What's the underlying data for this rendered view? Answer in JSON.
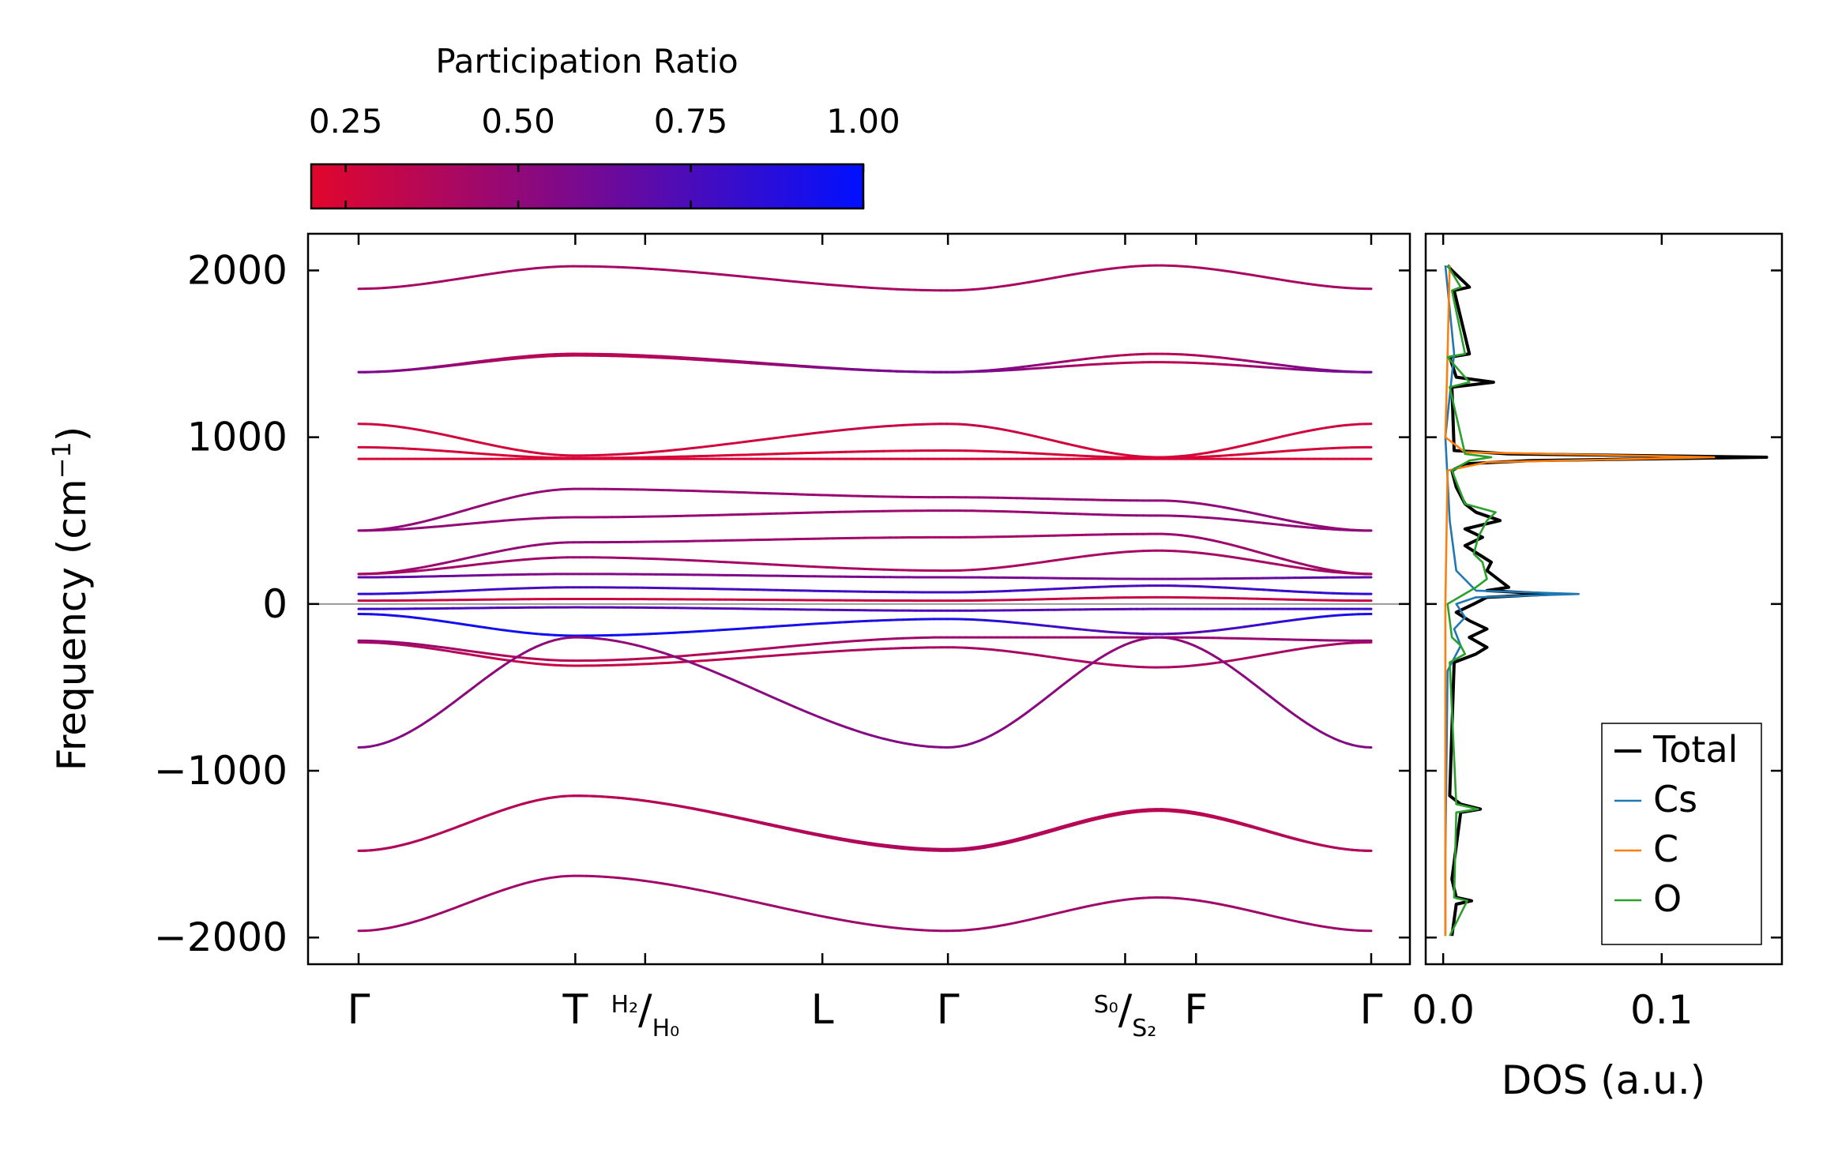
{
  "chart_data": [
    {
      "type": "line",
      "title": "",
      "ylabel": "Frequency (cm",
      "ylabel_sup": "−1",
      "ylabel_close": ")",
      "ylim": [
        -2160,
        2220
      ],
      "yticks": [
        -2000,
        -1000,
        0,
        1000,
        2000
      ],
      "ytick_labels": [
        "−2000",
        "−1000",
        "0",
        "1000",
        "2000"
      ],
      "x_path": [
        {
          "pos": 0.0,
          "label": "Γ"
        },
        {
          "pos": 0.214,
          "label": "T"
        },
        {
          "pos": 0.283,
          "label_sup": "H₂",
          "label_sub": "H₀",
          "slash": "/"
        },
        {
          "pos": 0.458,
          "label": "L"
        },
        {
          "pos": 0.582,
          "label": "Γ"
        },
        {
          "pos": 0.757,
          "label_sup": "S₀",
          "label_sub": "S₂",
          "slash": "/"
        },
        {
          "pos": 0.827,
          "label": "F"
        },
        {
          "pos": 1.0,
          "label": "Γ"
        }
      ],
      "zero_line": 0,
      "colorbar": {
        "label": "Participation Ratio",
        "range": [
          0.2,
          1.0
        ],
        "ticks": [
          0.25,
          0.5,
          0.75,
          1.0
        ],
        "tick_labels": [
          "0.25",
          "0.50",
          "0.75",
          "1.00"
        ],
        "color_low": "#e2062c",
        "color_mid": "#6b0a9c",
        "color_high": "#0010ff"
      },
      "bands": [
        {
          "y": [
            1890,
            2025,
            1880,
            2030,
            1890
          ],
          "pr": [
            0.42,
            0.42,
            0.42,
            0.4,
            0.42
          ]
        },
        {
          "y": [
            1390,
            1500,
            1390,
            1500,
            1390
          ],
          "pr": [
            0.58,
            0.36,
            0.6,
            0.36,
            0.6
          ]
        },
        {
          "y": [
            1390,
            1490,
            1390,
            1450,
            1390
          ],
          "pr": [
            0.58,
            0.34,
            0.6,
            0.34,
            0.6
          ]
        },
        {
          "y": [
            1080,
            890,
            1080,
            880,
            1080
          ],
          "pr": [
            0.28,
            0.25,
            0.3,
            0.25,
            0.28
          ]
        },
        {
          "y": [
            940,
            875,
            920,
            875,
            940
          ],
          "pr": [
            0.26,
            0.24,
            0.26,
            0.24,
            0.26
          ]
        },
        {
          "y": [
            870,
            870,
            870,
            870,
            870
          ],
          "pr": [
            0.24,
            0.24,
            0.24,
            0.24,
            0.24
          ]
        },
        {
          "y": [
            440,
            690,
            640,
            620,
            440
          ],
          "pr": [
            0.5,
            0.48,
            0.46,
            0.5,
            0.5
          ]
        },
        {
          "y": [
            440,
            520,
            560,
            530,
            440
          ],
          "pr": [
            0.5,
            0.48,
            0.46,
            0.5,
            0.5
          ]
        },
        {
          "y": [
            180,
            370,
            400,
            420,
            180
          ],
          "pr": [
            0.45,
            0.5,
            0.42,
            0.45,
            0.45
          ]
        },
        {
          "y": [
            180,
            280,
            200,
            320,
            180
          ],
          "pr": [
            0.42,
            0.45,
            0.4,
            0.42,
            0.42
          ]
        },
        {
          "y": [
            160,
            180,
            160,
            150,
            160
          ],
          "pr": [
            0.7,
            0.55,
            0.6,
            0.6,
            0.7
          ]
        },
        {
          "y": [
            60,
            100,
            70,
            110,
            60
          ],
          "pr": [
            0.85,
            0.75,
            0.8,
            0.75,
            0.85
          ]
        },
        {
          "y": [
            20,
            30,
            20,
            40,
            20
          ],
          "pr": [
            0.3,
            0.28,
            0.3,
            0.3,
            0.3
          ]
        },
        {
          "y": [
            -30,
            -20,
            -40,
            -30,
            -30
          ],
          "pr": [
            0.8,
            0.7,
            0.75,
            0.7,
            0.8
          ]
        },
        {
          "y": [
            -60,
            -190,
            -90,
            -180,
            -60
          ],
          "pr": [
            0.92,
            0.95,
            0.9,
            0.7,
            0.92
          ]
        },
        {
          "y": [
            -220,
            -340,
            -200,
            -200,
            -220
          ],
          "pr": [
            0.5,
            0.35,
            0.45,
            0.45,
            0.5
          ]
        },
        {
          "y": [
            -230,
            -370,
            -260,
            -380,
            -230
          ],
          "pr": [
            0.42,
            0.3,
            0.42,
            0.4,
            0.42
          ]
        },
        {
          "y": [
            -860,
            -200,
            -860,
            -200,
            -860
          ],
          "pr": [
            0.55,
            0.5,
            0.55,
            0.5,
            0.55
          ]
        },
        {
          "y": [
            -1480,
            -1150,
            -1470,
            -1230,
            -1480
          ],
          "pr": [
            0.4,
            0.38,
            0.4,
            0.36,
            0.4
          ]
        },
        {
          "y": [
            -1480,
            -1150,
            -1480,
            -1240,
            -1480
          ],
          "pr": [
            0.38,
            0.36,
            0.38,
            0.34,
            0.38
          ]
        },
        {
          "y": [
            -1960,
            -1630,
            -1960,
            -1760,
            -1960
          ],
          "pr": [
            0.45,
            0.44,
            0.45,
            0.44,
            0.45
          ]
        }
      ]
    },
    {
      "type": "line",
      "xlabel": "DOS (a.u.)",
      "xlim": [
        -0.008,
        0.155
      ],
      "xticks": [
        0.0,
        0.1
      ],
      "xtick_labels": [
        "0.0",
        "0.1"
      ],
      "ylim": [
        -2160,
        2220
      ],
      "legend": {
        "position": "bottom-right"
      },
      "series": [
        {
          "name": "Total",
          "color": "#000000",
          "freq": [
            -1990,
            -1800,
            -1780,
            -1760,
            -1650,
            -1250,
            -1230,
            -1200,
            -1150,
            -350,
            -300,
            -260,
            -200,
            -150,
            -100,
            -50,
            0,
            40,
            60,
            80,
            100,
            150,
            200,
            250,
            300,
            350,
            400,
            450,
            500,
            550,
            600,
            700,
            800,
            840,
            860,
            880,
            900,
            920,
            1300,
            1330,
            1360,
            1480,
            1500,
            1880,
            1900,
            2000,
            2030
          ],
          "dos": [
            0.004,
            0.006,
            0.013,
            0.006,
            0.004,
            0.008,
            0.017,
            0.008,
            0.003,
            0.005,
            0.015,
            0.02,
            0.012,
            0.02,
            0.012,
            0.006,
            0.014,
            0.02,
            0.05,
            0.02,
            0.03,
            0.025,
            0.02,
            0.022,
            0.016,
            0.01,
            0.018,
            0.01,
            0.026,
            0.015,
            0.01,
            0.006,
            0.004,
            0.01,
            0.04,
            0.148,
            0.03,
            0.005,
            0.004,
            0.023,
            0.006,
            0.003,
            0.012,
            0.005,
            0.012,
            0.004,
            0.002
          ]
        },
        {
          "name": "Cs",
          "color": "#1f77b4",
          "freq": [
            -1990,
            -1500,
            -400,
            -250,
            -150,
            -80,
            0,
            40,
            60,
            80,
            200,
            500,
            1000,
            1500,
            2030
          ],
          "dos": [
            0.001,
            0.001,
            0.002,
            0.008,
            0.005,
            0.01,
            0.006,
            0.015,
            0.062,
            0.015,
            0.006,
            0.003,
            0.001,
            0.005,
            0.001
          ]
        },
        {
          "name": "C",
          "color": "#ff7f0e",
          "freq": [
            -1990,
            -1000,
            0,
            800,
            850,
            880,
            910,
            1000,
            1500,
            2030
          ],
          "dos": [
            0.001,
            0.001,
            0.001,
            0.002,
            0.02,
            0.124,
            0.01,
            0.001,
            0.002,
            0.003
          ]
        },
        {
          "name": "O",
          "color": "#2ca02c",
          "freq": [
            -1990,
            -1780,
            -1760,
            -1250,
            -1230,
            -1200,
            -350,
            -300,
            -250,
            -200,
            0,
            100,
            150,
            250,
            300,
            400,
            500,
            550,
            600,
            800,
            860,
            880,
            900,
            1300,
            1330,
            1480,
            1500,
            1880,
            1900,
            2030
          ],
          "dos": [
            0.003,
            0.011,
            0.005,
            0.006,
            0.016,
            0.006,
            0.003,
            0.01,
            0.008,
            0.004,
            0.002,
            0.015,
            0.02,
            0.018,
            0.014,
            0.016,
            0.02,
            0.024,
            0.01,
            0.004,
            0.012,
            0.022,
            0.01,
            0.003,
            0.012,
            0.002,
            0.01,
            0.004,
            0.008,
            0.002
          ]
        }
      ]
    }
  ]
}
